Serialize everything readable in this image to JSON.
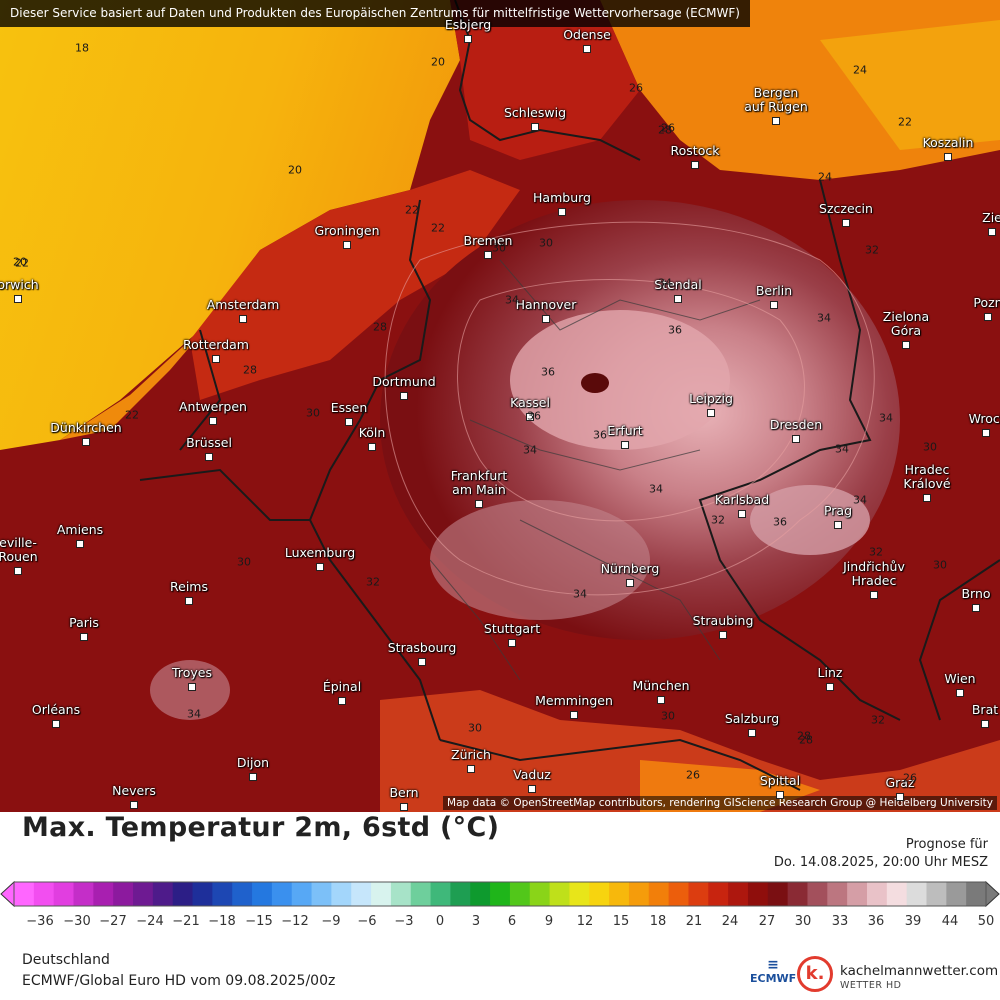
{
  "notice": "Dieser Service basiert auf Daten und Produkten des Europäischen Zentrums für mittelfristige Wettervorhersage (ECMWF)",
  "attribution": "Map data © OpenStreetMap contributors, rendering GIScience Research Group @ Heidelberg University",
  "title": "Max. Temperatur 2m, 6std (°C)",
  "forecast_label": "Prognose für",
  "forecast_time": "Do. 14.08.2025, 20:00 Uhr MESZ",
  "region": "Deutschland",
  "model_run": "ECMWF/Global Euro HD vom  09.08.2025/00z",
  "logo_ecmwf": "ECMWF",
  "logo_k": "k.",
  "brand_name": "kachelmannwetter.com",
  "brand_sub": "WETTER HD",
  "scale_labels": [
    "-36",
    "-30",
    "-27",
    "-24",
    "-21",
    "-18",
    "-15",
    "-12",
    "-9",
    "-6",
    "-3",
    "0",
    "3",
    "6",
    "9",
    "12",
    "15",
    "18",
    "21",
    "24",
    "27",
    "30",
    "33",
    "36",
    "39",
    "44",
    "50"
  ],
  "scale_colors": [
    "#ff66ff",
    "#f24ef0",
    "#e13ee0",
    "#c42ec8",
    "#a81fb0",
    "#8c1a9e",
    "#6e1a92",
    "#4e1b8a",
    "#2c1e86",
    "#1e2f9a",
    "#1d47b3",
    "#1f61cc",
    "#2478e0",
    "#3a90ee",
    "#57a8f5",
    "#7cc0f8",
    "#a3d6fb",
    "#c6e6fb",
    "#d8f3ee",
    "#a7e3c8",
    "#6ecf9c",
    "#3fb87a",
    "#1e9e52",
    "#0e9a2e",
    "#1fb51a",
    "#52c71a",
    "#8ad418",
    "#bfe01a",
    "#e8e519",
    "#f7d40f",
    "#f7b80c",
    "#f59c0b",
    "#f27f0a",
    "#ec5e0c",
    "#dc3d10",
    "#c8240f",
    "#ad170e",
    "#8f0e0c",
    "#7a0f12",
    "#8a2a34",
    "#a3505c",
    "#bc7680",
    "#d59ea6",
    "#e9c2c8",
    "#f4dde0",
    "#dcdcdc",
    "#bdbdbd",
    "#9a9a9a",
    "#7a7a7a"
  ],
  "cities": [
    {
      "name": "Esbjerg"
    },
    {
      "name": "Odense"
    },
    {
      "name": "Schleswig"
    },
    {
      "name": "Bergen\nauf Rügen"
    },
    {
      "name": "Rostock"
    },
    {
      "name": "Koszalin"
    },
    {
      "name": "Hamburg"
    },
    {
      "name": "Szczecin"
    },
    {
      "name": "Groningen"
    },
    {
      "name": "Bremen"
    },
    {
      "name": "Stendal"
    },
    {
      "name": "Berlin"
    },
    {
      "name": "Amsterdam"
    },
    {
      "name": "Hannover"
    },
    {
      "name": "Rotterdam"
    },
    {
      "name": "Zielona\nGóra"
    },
    {
      "name": "Dortmund"
    },
    {
      "name": "Antwerpen"
    },
    {
      "name": "Essen"
    },
    {
      "name": "Kassel"
    },
    {
      "name": "Leipzig"
    },
    {
      "name": "Dünkirchen"
    },
    {
      "name": "Köln"
    },
    {
      "name": "Brüssel"
    },
    {
      "name": "Dresden"
    },
    {
      "name": "Erfurt"
    },
    {
      "name": "Frankfurt\nam Main"
    },
    {
      "name": "Karlsbad"
    },
    {
      "name": "Hradec\nKrálové"
    },
    {
      "name": "Prag"
    },
    {
      "name": "Amiens"
    },
    {
      "name": "Luxemburg"
    },
    {
      "name": "Nürnberg"
    },
    {
      "name": "Reims"
    },
    {
      "name": "Jindřichův\nHradec"
    },
    {
      "name": "Paris"
    },
    {
      "name": "Stuttgart"
    },
    {
      "name": "Straubing"
    },
    {
      "name": "Strasbourg"
    },
    {
      "name": "Troyes"
    },
    {
      "name": "Linz"
    },
    {
      "name": "Wien"
    },
    {
      "name": "Épinal"
    },
    {
      "name": "München"
    },
    {
      "name": "Memmingen"
    },
    {
      "name": "Orléans"
    },
    {
      "name": "Salzburg"
    },
    {
      "name": "Zürich"
    },
    {
      "name": "Dijon"
    },
    {
      "name": "Vaduz"
    },
    {
      "name": "Nevers"
    },
    {
      "name": "Bern"
    },
    {
      "name": "Spittal"
    },
    {
      "name": "Graz"
    },
    {
      "name": "Brno"
    },
    {
      "name": "Wrocł"
    },
    {
      "name": "Pozn"
    },
    {
      "name": "Zie"
    },
    {
      "name": "orwich"
    },
    {
      "name": "Brat"
    },
    {
      "name": "eville-\nRouen"
    }
  ],
  "isolines": [
    "18",
    "20",
    "20",
    "22",
    "22",
    "22",
    "22",
    "24",
    "26",
    "22",
    "28",
    "28",
    "30",
    "30",
    "30",
    "34",
    "34",
    "34",
    "36",
    "36",
    "36",
    "34",
    "34",
    "32",
    "34",
    "34",
    "36",
    "34",
    "34",
    "32",
    "30",
    "32",
    "30",
    "34",
    "30",
    "26",
    "28",
    "26",
    "26",
    "24",
    "32",
    "30",
    "32",
    "28",
    "30",
    "36",
    "28",
    "20"
  ]
}
